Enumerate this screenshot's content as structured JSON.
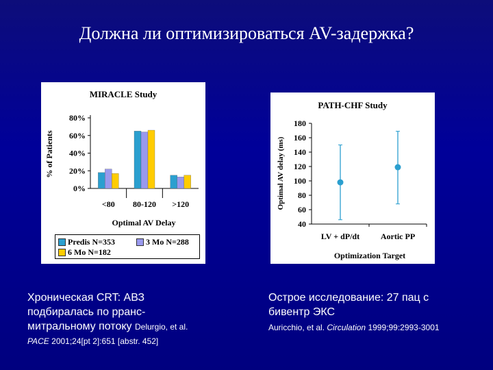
{
  "slide": {
    "title": "Должна ли оптимизироваться AV-задержка?"
  },
  "chart_data": [
    {
      "type": "bar",
      "title": "MIRACLE Study",
      "xlabel": "Optimal AV Delay",
      "ylabel": "% of Patients",
      "categories": [
        "<80",
        "80-120",
        ">120"
      ],
      "yticks": [
        "0%",
        "20%",
        "40%",
        "60%",
        "80%"
      ],
      "ylim": [
        0,
        80
      ],
      "grid": false,
      "legend_position": "bottom",
      "series": [
        {
          "name": "Predis N=353",
          "color": "#2b9fcf",
          "values": [
            18,
            65,
            15
          ]
        },
        {
          "name": "3 Mo N=288",
          "color": "#9999ee",
          "values": [
            22,
            64,
            13
          ]
        },
        {
          "name": "6 Mo N=182",
          "color": "#ffcc00",
          "values": [
            17,
            66,
            15
          ]
        }
      ]
    },
    {
      "type": "scatter",
      "title": "PATH-CHF Study",
      "xlabel": "Optimization Target",
      "ylabel": "Optimal AV delay (ms)",
      "categories": [
        "LV + dP/dt",
        "Aortic PP"
      ],
      "yticks": [
        "40",
        "60",
        "80",
        "100",
        "120",
        "140",
        "160",
        "180"
      ],
      "ylim": [
        40,
        180
      ],
      "grid": false,
      "color": "#2b9fcf",
      "points": [
        {
          "category": "LV + dP/dt",
          "value": 98,
          "low": 46,
          "high": 150
        },
        {
          "category": "Aortic PP",
          "value": 119,
          "low": 68,
          "high": 169
        }
      ]
    }
  ],
  "captions": {
    "left": {
      "line1": "Хроническая CRT: АВЗ",
      "line2": "подбиралась по рранс-",
      "line3": "митральному потоку",
      "ref_author": "Delurgio, et al.",
      "ref_journal": "PACE",
      "ref_detail": "2001;24[pt 2]:651 [abstr. 452]"
    },
    "right": {
      "line1": "Острое исследование: 27 пац с",
      "line2": "бивентр ЭКС",
      "ref_author": "Auricchio, et al.",
      "ref_journal": "Circulation",
      "ref_detail": "1999;99:2993-3001"
    }
  }
}
